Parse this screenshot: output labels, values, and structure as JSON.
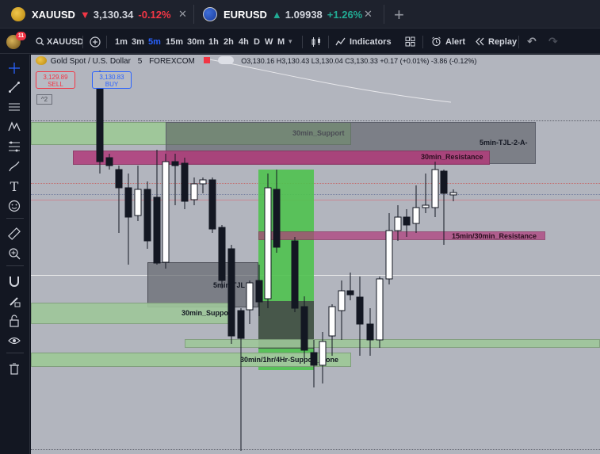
{
  "tabs": [
    {
      "symbol": "XAUUSD",
      "arrow": "▼",
      "price": "3,130.34",
      "change": "-0.12%",
      "direction": "down"
    },
    {
      "symbol": "EURUSD",
      "arrow": "▲",
      "price": "1.09938",
      "change": "+1.26%",
      "direction": "up"
    }
  ],
  "toolbar": {
    "badge_count": "11",
    "symbol": "XAUUSD",
    "intervals": [
      "1m",
      "3m",
      "5m",
      "15m",
      "30m",
      "1h",
      "2h",
      "4h",
      "D",
      "W",
      "M"
    ],
    "active_interval": "5m",
    "indicators_label": "Indicators",
    "alert_label": "Alert",
    "replay_label": "Replay"
  },
  "legend": {
    "title": "Gold Spot / U.S. Dollar",
    "interval": "5",
    "exchange": "FOREXCOM",
    "ohlc": "O3,130.16 H3,130.43 L3,130.04 C3,130.33 +0.17 (+0.01%) -3.86 (-0.12%)"
  },
  "trade": {
    "sell_price": "3,129.89",
    "sell_label": "SELL",
    "buy_price": "3,130.83",
    "buy_label": "BUY",
    "collapse_label": "^2"
  },
  "zones": {
    "z30_support_top": "30min_Support",
    "z5_tjl": "5min-TJL-2-A-",
    "z30_resistance": "30min_Resistance",
    "z15_30_resistance": "15min/30min_Resistance",
    "z5_tjl_mid": "5min-TJL",
    "z30_support_low": "30min_Support",
    "z_multi": "30min/1hr/4Hr-Support_Zone"
  },
  "colors": {
    "accent": "#2962ff",
    "down": "#f23645",
    "up": "#22ab94",
    "support": "#9fc79a",
    "resistance": "#b03a7a",
    "chart_bg": "#b2b5be"
  }
}
